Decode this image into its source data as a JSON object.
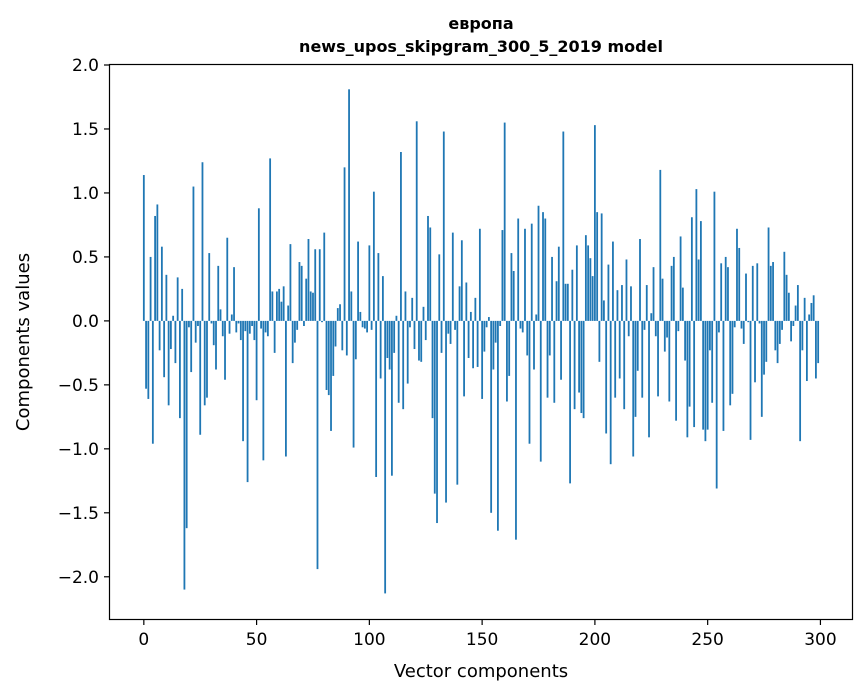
{
  "chart_data": {
    "type": "bar",
    "title": "европа",
    "subtitle": "news_upos_skipgram_300_5_2019 model",
    "xlabel": "Vector components",
    "ylabel": "Components values",
    "xlim": [
      -15,
      314
    ],
    "ylim": [
      -2.33,
      2.0
    ],
    "xticks": [
      0,
      50,
      100,
      150,
      200,
      250,
      300
    ],
    "xtick_labels": [
      "0",
      "50",
      "100",
      "150",
      "200",
      "250",
      "300"
    ],
    "yticks": [
      2.0,
      1.5,
      1.0,
      0.5,
      0.0,
      -0.5,
      -1.0,
      -1.5,
      -2.0
    ],
    "ytick_labels": [
      "2.0",
      "1.5",
      "1.0",
      "0.5",
      "0.0",
      "−0.5",
      "−1.0",
      "−1.5",
      "−2.0"
    ],
    "grid": false,
    "legend": "none",
    "bar_color": "#1f77b4",
    "x": [
      0,
      1,
      2,
      3,
      4,
      5,
      6,
      7,
      8,
      9,
      10,
      11,
      12,
      13,
      14,
      15,
      16,
      17,
      18,
      19,
      20,
      21,
      22,
      23,
      24,
      25,
      26,
      27,
      28,
      29,
      30,
      31,
      32,
      33,
      34,
      35,
      36,
      37,
      38,
      39,
      40,
      41,
      42,
      43,
      44,
      45,
      46,
      47,
      48,
      49,
      50,
      51,
      52,
      53,
      54,
      55,
      56,
      57,
      58,
      59,
      60,
      61,
      62,
      63,
      64,
      65,
      66,
      67,
      68,
      69,
      70,
      71,
      72,
      73,
      74,
      75,
      76,
      77,
      78,
      79,
      80,
      81,
      82,
      83,
      84,
      85,
      86,
      87,
      88,
      89,
      90,
      91,
      92,
      93,
      94,
      95,
      96,
      97,
      98,
      99,
      100,
      101,
      102,
      103,
      104,
      105,
      106,
      107,
      108,
      109,
      110,
      111,
      112,
      113,
      114,
      115,
      116,
      117,
      118,
      119,
      120,
      121,
      122,
      123,
      124,
      125,
      126,
      127,
      128,
      129,
      130,
      131,
      132,
      133,
      134,
      135,
      136,
      137,
      138,
      139,
      140,
      141,
      142,
      143,
      144,
      145,
      146,
      147,
      148,
      149,
      150,
      151,
      152,
      153,
      154,
      155,
      156,
      157,
      158,
      159,
      160,
      161,
      162,
      163,
      164,
      165,
      166,
      167,
      168,
      169,
      170,
      171,
      172,
      173,
      174,
      175,
      176,
      177,
      178,
      179,
      180,
      181,
      182,
      183,
      184,
      185,
      186,
      187,
      188,
      189,
      190,
      191,
      192,
      193,
      194,
      195,
      196,
      197,
      198,
      199,
      200,
      201,
      202,
      203,
      204,
      205,
      206,
      207,
      208,
      209,
      210,
      211,
      212,
      213,
      214,
      215,
      216,
      217,
      218,
      219,
      220,
      221,
      222,
      223,
      224,
      225,
      226,
      227,
      228,
      229,
      230,
      231,
      232,
      233,
      234,
      235,
      236,
      237,
      238,
      239,
      240,
      241,
      242,
      243,
      244,
      245,
      246,
      247,
      248,
      249,
      250,
      251,
      252,
      253,
      254,
      255,
      256,
      257,
      258,
      259,
      260,
      261,
      262,
      263,
      264,
      265,
      266,
      267,
      268,
      269,
      270,
      271,
      272,
      273,
      274,
      275,
      276,
      277,
      278,
      279,
      280,
      281,
      282,
      283,
      284,
      285,
      286,
      287,
      288,
      289,
      290,
      291,
      292,
      293,
      294,
      295,
      296,
      297,
      298,
      299
    ],
    "values": [
      1.14,
      -0.53,
      -0.61,
      0.5,
      -0.96,
      0.82,
      0.91,
      -0.23,
      0.58,
      -0.44,
      0.36,
      -0.66,
      -0.22,
      0.04,
      -0.33,
      0.34,
      -0.76,
      0.25,
      -2.1,
      -1.62,
      -0.05,
      -0.4,
      1.05,
      -0.17,
      -0.04,
      -0.89,
      1.24,
      -0.66,
      -0.6,
      0.53,
      -0.02,
      -0.19,
      -0.38,
      0.43,
      0.09,
      -0.12,
      -0.46,
      0.65,
      -0.1,
      0.05,
      0.42,
      -0.09,
      -0.02,
      -0.15,
      -0.94,
      -0.08,
      -1.26,
      -0.1,
      -0.04,
      -0.15,
      -0.62,
      0.88,
      -0.06,
      -1.09,
      -0.09,
      -0.12,
      1.27,
      0.23,
      -0.25,
      0.23,
      0.25,
      0.15,
      0.27,
      -1.06,
      0.12,
      0.6,
      -0.33,
      -0.17,
      -0.07,
      0.46,
      0.43,
      -0.04,
      0.33,
      0.64,
      0.23,
      0.22,
      0.56,
      -1.94,
      0.56,
      -0.01,
      0.69,
      -0.54,
      -0.58,
      -0.86,
      -0.43,
      -0.2,
      0.1,
      0.13,
      -0.23,
      1.2,
      -0.27,
      1.81,
      0.23,
      -0.99,
      -0.3,
      0.62,
      0.07,
      -0.05,
      -0.06,
      -0.09,
      0.59,
      -0.07,
      1.01,
      -1.22,
      0.53,
      -0.45,
      0.35,
      -2.13,
      -0.29,
      -0.38,
      -1.21,
      -0.25,
      0.04,
      -0.64,
      1.32,
      -0.69,
      0.23,
      -0.49,
      -0.05,
      0.18,
      -0.22,
      1.56,
      -0.31,
      -0.32,
      0.11,
      -0.15,
      0.82,
      0.73,
      -0.76,
      -1.35,
      -1.58,
      0.52,
      -0.25,
      1.48,
      -1.42,
      -0.1,
      -0.18,
      0.69,
      -0.07,
      -1.28,
      0.27,
      0.63,
      -0.59,
      0.3,
      -0.29,
      0.07,
      -0.37,
      0.18,
      -0.36,
      0.72,
      -0.61,
      -0.24,
      -0.05,
      0.03,
      -1.5,
      -0.38,
      -0.17,
      -1.64,
      -0.04,
      0.71,
      1.55,
      -0.63,
      -0.43,
      0.53,
      0.39,
      -1.71,
      0.8,
      -0.06,
      -0.09,
      0.72,
      -0.27,
      -0.96,
      0.76,
      -0.38,
      0.05,
      0.9,
      -1.1,
      0.85,
      0.8,
      -0.6,
      -0.27,
      0.5,
      -0.64,
      0.31,
      0.58,
      -0.46,
      1.48,
      0.29,
      0.29,
      -1.27,
      0.4,
      -0.69,
      0.59,
      -0.56,
      -0.72,
      -0.76,
      0.67,
      0.59,
      0.49,
      0.35,
      1.53,
      0.85,
      -0.32,
      0.84,
      0.16,
      -0.88,
      0.44,
      -1.12,
      0.62,
      -0.6,
      0.24,
      -0.45,
      0.28,
      -0.69,
      0.48,
      -0.12,
      0.27,
      -1.06,
      -0.75,
      -0.39,
      0.64,
      -0.6,
      -0.07,
      0.28,
      -0.91,
      0.06,
      0.42,
      -0.12,
      -0.59,
      1.18,
      0.33,
      -0.24,
      -0.13,
      -0.63,
      0.43,
      0.5,
      -0.78,
      -0.08,
      0.66,
      0.26,
      -0.31,
      -0.91,
      -0.67,
      0.81,
      -0.83,
      1.03,
      0.48,
      0.78,
      -0.85,
      -0.94,
      -0.85,
      -0.23,
      -0.64,
      1.01,
      -1.31,
      -0.09,
      0.45,
      -0.86,
      0.5,
      0.42,
      -0.66,
      -0.57,
      -0.05,
      0.72,
      0.57,
      -0.06,
      -0.18,
      0.37,
      -0.01,
      -0.93,
      0.43,
      -0.48,
      0.45,
      -0.02,
      -0.75,
      -0.42,
      -0.32,
      0.73,
      0.43,
      0.46,
      -0.23,
      -0.33,
      -0.18,
      -0.07,
      0.54,
      0.36,
      0.22,
      -0.16,
      -0.04,
      0.12,
      0.28,
      -0.94,
      -0.23,
      0.18,
      -0.47,
      0.05,
      0.14,
      0.2,
      -0.45,
      -0.33
    ]
  }
}
